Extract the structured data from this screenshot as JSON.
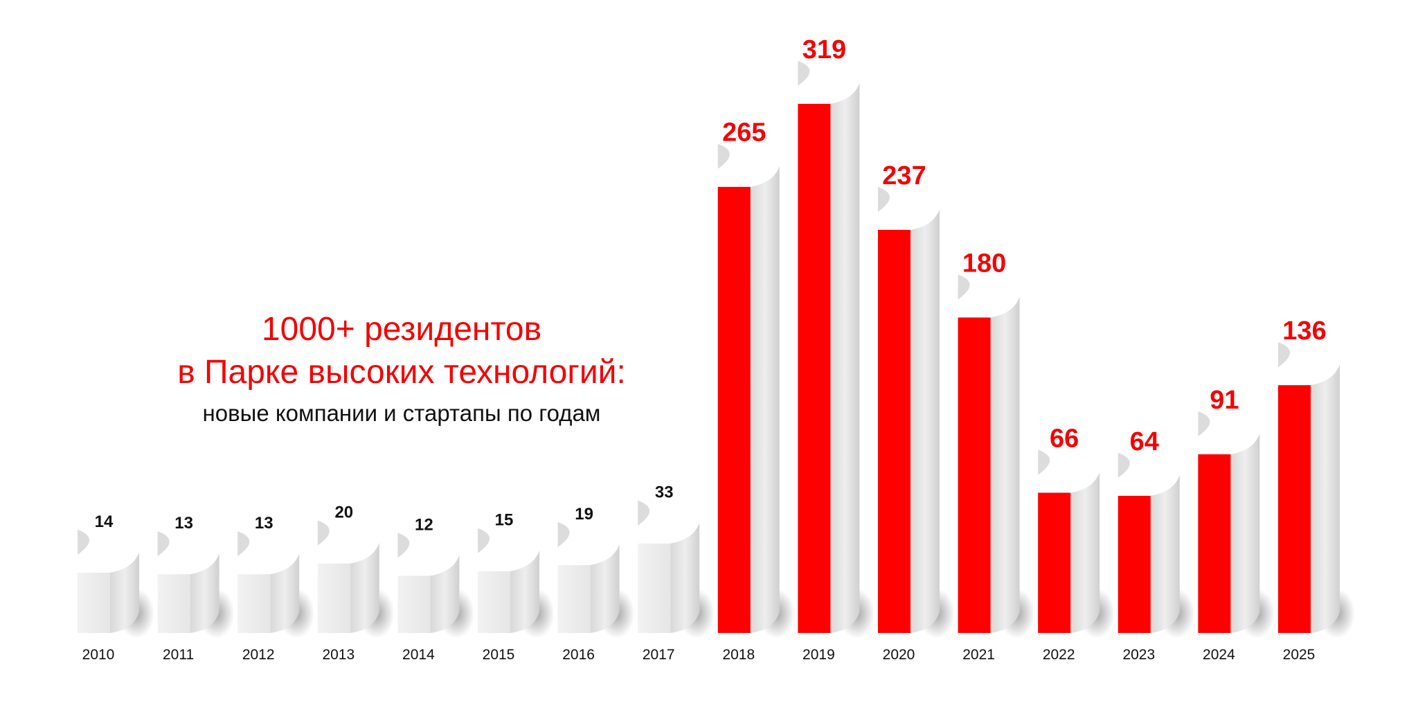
{
  "chart_data": {
    "type": "bar",
    "title": "1000+ резидентов",
    "title_line2": "в Парке высоких технологий:",
    "subtitle": "новые компании и стартапы по годам",
    "categories": [
      "2010",
      "2011",
      "2012",
      "2013",
      "2014",
      "2015",
      "2016",
      "2017",
      "2018",
      "2019",
      "2020",
      "2021",
      "2022",
      "2023",
      "2024",
      "2025"
    ],
    "values": [
      14,
      13,
      13,
      20,
      12,
      15,
      19,
      33,
      265,
      319,
      237,
      180,
      66,
      64,
      91,
      136
    ],
    "highlight_from": "2018",
    "colors": {
      "highlight": "#ff0000",
      "default": "#eeeeee",
      "label_highlight": "#f50000",
      "label_default": "#111111"
    },
    "grid": false,
    "legend": "none"
  }
}
